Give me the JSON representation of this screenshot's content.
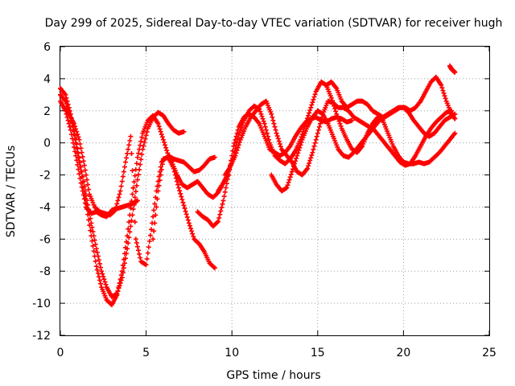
{
  "chart_data": {
    "type": "scatter",
    "title": "Day 299 of 2025, Sidereal Day-to-day VTEC variation (SDTVAR) for receiver hugh",
    "xlabel": "GPS time / hours",
    "ylabel": "SDTVAR / TECUs",
    "xlim": [
      0,
      25
    ],
    "ylim": [
      -12,
      6
    ],
    "xticks": [
      0,
      5,
      10,
      15,
      20,
      25
    ],
    "yticks": [
      -12,
      -10,
      -8,
      -6,
      -4,
      -2,
      0,
      2,
      4,
      6
    ],
    "grid": true,
    "marker": "plus",
    "series_color": "#ff0000",
    "series": [
      {
        "x": [
          0.0,
          0.3,
          0.6,
          0.9,
          1.2,
          1.5,
          1.8,
          2.1,
          2.4,
          2.7,
          3.0,
          3.3,
          3.6,
          3.9,
          4.2,
          4.5,
          4.8,
          5.1,
          5.4,
          5.7,
          6.0,
          6.3,
          6.6,
          6.9,
          7.2
        ],
        "y": [
          3.4,
          3.0,
          1.8,
          0.2,
          -1.5,
          -3.3,
          -5.0,
          -6.6,
          -8.0,
          -9.0,
          -9.6,
          -9.4,
          -8.4,
          -6.6,
          -4.5,
          -2.3,
          -0.4,
          0.9,
          1.6,
          1.9,
          1.7,
          1.2,
          0.8,
          0.6,
          0.7
        ]
      },
      {
        "x": [
          0.0,
          0.3,
          0.6,
          0.9,
          1.2,
          1.5,
          1.8,
          2.1,
          2.4,
          2.7,
          3.0,
          3.3,
          3.6,
          3.9,
          4.2,
          4.5,
          4.8,
          5.1,
          5.4,
          5.7,
          6.0,
          6.3,
          6.6,
          6.9,
          7.2,
          7.5,
          7.8,
          8.1,
          8.4,
          8.7,
          9.0
        ],
        "y": [
          3.0,
          2.6,
          1.6,
          0.0,
          -1.8,
          -3.8,
          -5.8,
          -7.7,
          -9.0,
          -9.8,
          -10.1,
          -9.5,
          -8.0,
          -5.8,
          -3.2,
          -0.9,
          0.6,
          1.4,
          1.7,
          1.2,
          0.2,
          -0.8,
          -1.0,
          -1.1,
          -1.2,
          -1.5,
          -1.8,
          -1.7,
          -1.4,
          -1.0,
          -0.9
        ]
      },
      {
        "x": [
          0.0,
          0.3,
          0.6,
          0.9,
          1.2,
          1.5,
          1.8,
          2.1,
          2.4,
          2.7,
          3.0,
          3.3,
          3.6,
          3.9,
          4.2,
          4.5
        ],
        "y": [
          2.6,
          2.0,
          0.8,
          -0.8,
          -2.5,
          -4.0,
          -4.4,
          -4.3,
          -4.5,
          -4.6,
          -4.2,
          -4.1,
          -4.0,
          -3.9,
          -3.8,
          -3.6
        ]
      },
      {
        "x": [
          0.2,
          0.5,
          0.8,
          1.1,
          1.4,
          1.7,
          2.0,
          2.3,
          2.6,
          2.9,
          3.2,
          3.5,
          3.8,
          4.1,
          4.4,
          4.7,
          5.0,
          5.3,
          5.6,
          5.9,
          6.2,
          6.5,
          6.8,
          7.1,
          7.4,
          7.7,
          8.0,
          8.3,
          8.6,
          8.9,
          9.2,
          9.5,
          9.8
        ],
        "y": [
          2.2,
          1.8,
          1.2,
          0.2,
          -1.4,
          -3.2,
          -4.0,
          -4.3,
          -4.4,
          -4.5,
          -4.2,
          -3.0,
          -1.2,
          0.4,
          -6.0,
          -7.4,
          -7.6,
          -5.4,
          -3.0,
          -1.2,
          -0.9,
          -1.2,
          -2.0,
          -2.6,
          -2.8,
          -2.6,
          -2.4,
          -2.8,
          -3.2,
          -3.4,
          -3.1,
          -2.5,
          -2.0
        ]
      },
      {
        "x": [
          5.4,
          5.7,
          6.0,
          6.3,
          6.6,
          6.9,
          7.2,
          7.5,
          7.8,
          8.1,
          8.4,
          8.7,
          9.0
        ],
        "y": [
          -6.0,
          -3.0,
          -1.0,
          -0.9,
          -1.6,
          -2.8,
          -3.9,
          -5.0,
          -6.0,
          -6.3,
          -6.8,
          -7.5,
          -7.8
        ]
      },
      {
        "x": [
          8.0,
          8.3,
          8.6,
          8.9,
          9.2,
          9.5,
          9.8,
          10.1,
          10.4,
          10.7,
          11.0,
          11.3,
          11.6,
          11.9,
          12.2,
          12.5,
          12.8,
          13.1,
          13.4,
          13.7,
          14.0,
          14.3,
          14.6,
          14.9,
          15.2,
          15.5,
          15.8,
          16.1,
          16.4,
          16.7,
          17.0
        ],
        "y": [
          -4.3,
          -4.6,
          -4.8,
          -5.2,
          -4.9,
          -3.6,
          -2.0,
          -0.2,
          1.0,
          1.6,
          1.8,
          1.6,
          1.2,
          0.4,
          -0.4,
          -0.6,
          -0.8,
          -0.6,
          -0.2,
          0.4,
          0.9,
          1.3,
          1.5,
          1.6,
          1.4,
          1.3,
          1.5,
          1.6,
          1.5,
          1.3,
          1.4
        ]
      },
      {
        "x": [
          9.2,
          9.5,
          9.8,
          10.1,
          10.4,
          10.7,
          11.0,
          11.3,
          11.6,
          11.9,
          12.2,
          12.5,
          12.8,
          13.1,
          13.4,
          13.7,
          14.0,
          14.3,
          14.6,
          14.9,
          15.2,
          15.5,
          15.8,
          16.1,
          16.4,
          16.7,
          17.0,
          17.3,
          17.6,
          17.9,
          18.2,
          18.5,
          18.8,
          19.1,
          19.4,
          19.7,
          20.0,
          20.3,
          20.6,
          20.9,
          21.2,
          21.5,
          21.8,
          22.1,
          22.4,
          22.7,
          23.0
        ],
        "y": [
          -3.0,
          -2.5,
          -1.8,
          -0.8,
          0.5,
          1.4,
          2.0,
          2.3,
          2.1,
          1.2,
          0.0,
          -0.8,
          -1.1,
          -1.3,
          -1.0,
          -0.5,
          0.2,
          1.2,
          2.2,
          3.2,
          3.8,
          3.6,
          2.8,
          1.8,
          0.9,
          0.2,
          -0.4,
          -0.6,
          -0.2,
          0.6,
          1.2,
          1.6,
          1.4,
          0.6,
          -0.2,
          -0.8,
          -1.2,
          -1.3,
          -1.3,
          -1.2,
          -1.3,
          -1.2,
          -0.9,
          -0.6,
          -0.2,
          0.2,
          0.6
        ]
      },
      {
        "x": [
          9.6,
          9.9,
          10.2,
          10.5,
          10.8,
          11.1,
          11.4,
          11.7,
          12.0,
          12.3,
          12.6,
          12.9,
          13.2,
          13.5,
          13.8,
          14.1,
          14.4,
          14.7,
          15.0,
          15.3,
          15.6,
          15.9,
          16.2,
          16.5,
          16.8,
          17.1,
          17.4,
          17.7,
          18.0,
          18.3,
          18.6,
          18.9,
          19.2,
          19.5,
          19.8,
          20.1,
          20.4,
          20.7,
          21.0,
          21.3,
          21.6,
          21.9,
          22.2,
          22.5,
          22.8
        ],
        "y": [
          -2.0,
          -1.5,
          -0.8,
          0.2,
          1.0,
          1.6,
          2.0,
          2.4,
          2.6,
          1.8,
          0.6,
          -0.4,
          -0.8,
          -1.2,
          -1.8,
          -2.0,
          -1.6,
          -0.6,
          0.6,
          1.8,
          2.6,
          2.5,
          2.2,
          2.2,
          2.0,
          1.6,
          1.4,
          1.2,
          1.0,
          0.8,
          0.4,
          0.0,
          -0.4,
          -0.8,
          -1.2,
          -1.4,
          -1.3,
          -0.8,
          -0.2,
          0.4,
          0.9,
          1.3,
          1.6,
          1.9,
          2.0
        ]
      },
      {
        "x": [
          12.3,
          12.6,
          12.9,
          13.2,
          13.5,
          13.8,
          14.1,
          14.4,
          14.7,
          15.0,
          15.3,
          15.6,
          15.9,
          16.2,
          16.5,
          16.8,
          17.1,
          17.4,
          17.7,
          18.0,
          18.3,
          18.6,
          18.9,
          19.2,
          19.5,
          19.8,
          20.1,
          20.4,
          20.7,
          21.0,
          21.3,
          21.6,
          21.9,
          22.2,
          22.5,
          22.8,
          23.0
        ],
        "y": [
          -2.0,
          -2.6,
          -3.0,
          -2.8,
          -1.8,
          -0.8,
          0.2,
          1.0,
          1.6,
          2.0,
          1.8,
          1.2,
          0.4,
          -0.4,
          -0.8,
          -0.9,
          -0.6,
          -0.2,
          0.2,
          0.6,
          1.0,
          1.4,
          1.6,
          1.8,
          2.0,
          2.2,
          2.2,
          2.0,
          2.2,
          2.6,
          3.2,
          3.8,
          4.1,
          3.6,
          2.6,
          1.8,
          1.5
        ]
      },
      {
        "x": [
          15.5,
          15.8,
          16.1,
          16.4,
          16.7,
          17.0,
          17.3,
          17.6,
          17.9,
          18.2,
          18.5,
          18.8,
          19.1,
          19.4,
          19.7,
          20.0,
          20.3,
          20.6,
          20.9,
          21.2,
          21.5,
          21.8,
          22.1,
          22.4,
          22.7,
          23.0
        ],
        "y": [
          3.6,
          3.8,
          3.4,
          2.6,
          2.2,
          2.4,
          2.6,
          2.6,
          2.4,
          2.0,
          1.8,
          1.6,
          1.8,
          2.0,
          2.2,
          2.2,
          1.9,
          1.4,
          1.0,
          0.6,
          0.4,
          0.6,
          1.0,
          1.4,
          1.6,
          1.8
        ]
      },
      {
        "x": [
          22.7,
          22.8,
          22.9,
          23.0
        ],
        "y": [
          4.8,
          4.6,
          4.5,
          4.4
        ]
      }
    ]
  }
}
